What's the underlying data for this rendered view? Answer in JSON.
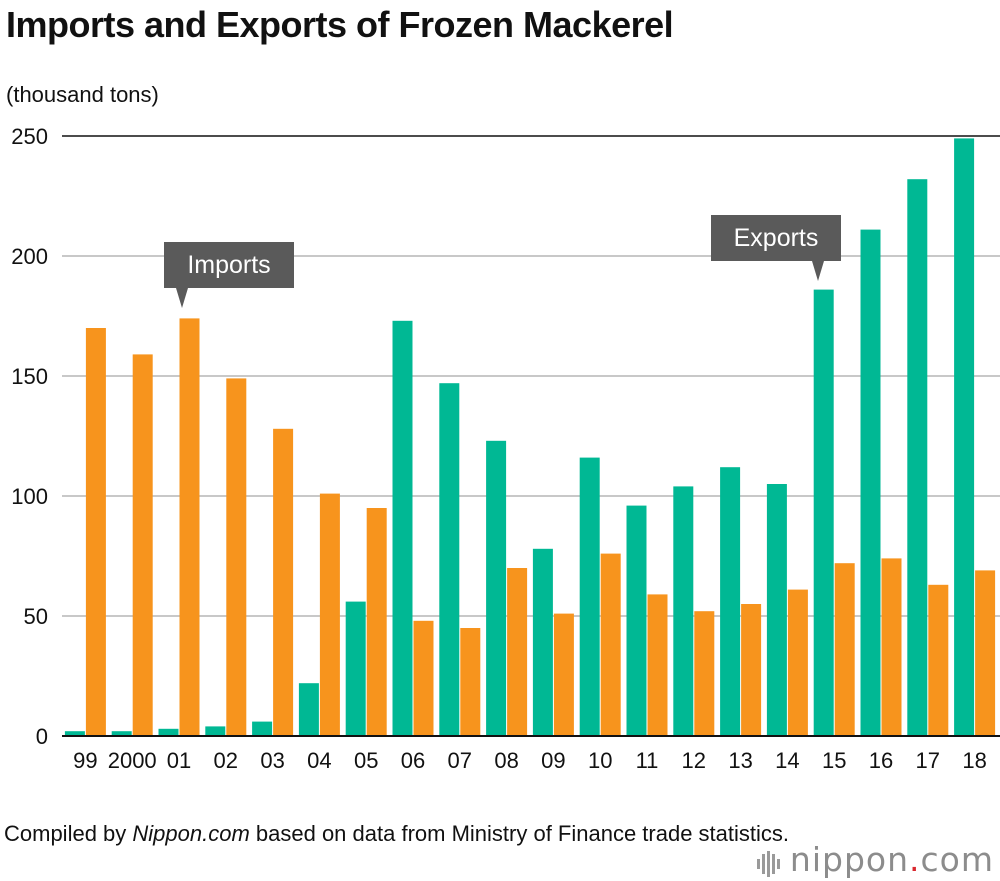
{
  "chart_data": {
    "type": "bar",
    "title": "Imports and Exports of Frozen Mackerel",
    "ylabel": "(thousand tons)",
    "xlabel": "",
    "ylim": [
      0,
      250
    ],
    "yticks": [
      0,
      50,
      100,
      150,
      200,
      250
    ],
    "grid": true,
    "categories": [
      "99",
      "2000",
      "01",
      "02",
      "03",
      "04",
      "05",
      "06",
      "07",
      "08",
      "09",
      "10",
      "11",
      "12",
      "13",
      "14",
      "15",
      "16",
      "17",
      "18"
    ],
    "series": [
      {
        "name": "Exports",
        "color": "#00b894",
        "values": [
          2,
          2,
          3,
          4,
          6,
          22,
          56,
          173,
          147,
          123,
          78,
          116,
          96,
          104,
          112,
          105,
          186,
          211,
          232,
          249
        ]
      },
      {
        "name": "Imports",
        "color": "#f7941d",
        "values": [
          170,
          159,
          174,
          149,
          128,
          101,
          95,
          48,
          45,
          70,
          51,
          76,
          59,
          52,
          55,
          61,
          72,
          74,
          63,
          69
        ]
      }
    ],
    "annotations": [
      {
        "label": "Imports",
        "series": "Imports",
        "category": "01"
      },
      {
        "label": "Exports",
        "series": "Exports",
        "category": "15"
      }
    ]
  },
  "source": {
    "prefix": "Compiled by ",
    "site": "Nippon.com",
    "suffix": " based on data from Ministry of Finance trade statistics."
  },
  "brand": {
    "name": "nippon",
    "dot": ".",
    "tld": "com"
  }
}
